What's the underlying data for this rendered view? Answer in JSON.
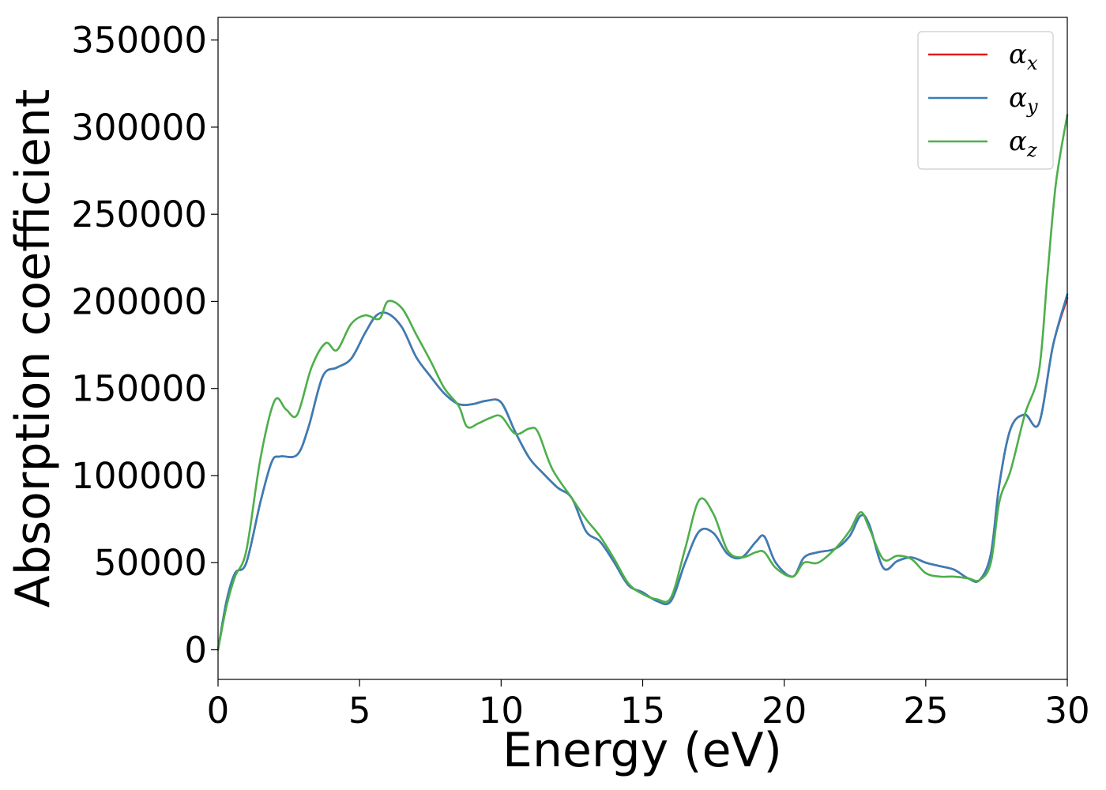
{
  "chart_data": {
    "type": "line",
    "title": "",
    "xlabel": "Energy (eV)",
    "ylabel": "Absorption coefficient",
    "xlim": [
      0,
      30
    ],
    "ylim": [
      -17000,
      363000
    ],
    "x_ticks": [
      "0",
      "5",
      "10",
      "15",
      "20",
      "25",
      "30"
    ],
    "x_tick_values": [
      0,
      5,
      10,
      15,
      20,
      25,
      30
    ],
    "y_ticks": [
      "0",
      "50000",
      "100000",
      "150000",
      "200000",
      "250000",
      "300000",
      "350000"
    ],
    "y_tick_values": [
      0,
      50000,
      100000,
      150000,
      200000,
      250000,
      300000,
      350000
    ],
    "grid": false,
    "legend_position": "top-right",
    "series": [
      {
        "name": "α_x",
        "base": "α",
        "sub": "x",
        "color": "#e41a1c",
        "points": [
          [
            0,
            0
          ],
          [
            0.3,
            28000
          ],
          [
            0.6,
            44000
          ],
          [
            1.0,
            50000
          ],
          [
            1.5,
            85000
          ],
          [
            1.9,
            108000
          ],
          [
            2.2,
            111000
          ],
          [
            2.8,
            112000
          ],
          [
            3.2,
            128000
          ],
          [
            3.7,
            157000
          ],
          [
            4.2,
            162000
          ],
          [
            4.7,
            167000
          ],
          [
            5.2,
            182000
          ],
          [
            5.6,
            192000
          ],
          [
            6.0,
            193000
          ],
          [
            6.5,
            185000
          ],
          [
            7.0,
            168000
          ],
          [
            7.5,
            157000
          ],
          [
            8.0,
            147000
          ],
          [
            8.5,
            141000
          ],
          [
            9.0,
            141000
          ],
          [
            9.5,
            143000
          ],
          [
            10.0,
            142000
          ],
          [
            10.5,
            125000
          ],
          [
            11.0,
            110000
          ],
          [
            11.5,
            101000
          ],
          [
            12.0,
            93000
          ],
          [
            12.5,
            87000
          ],
          [
            13.0,
            68000
          ],
          [
            13.5,
            62000
          ],
          [
            14.0,
            50000
          ],
          [
            14.5,
            37000
          ],
          [
            15.0,
            33000
          ],
          [
            15.5,
            28000
          ],
          [
            16.0,
            28000
          ],
          [
            16.5,
            50000
          ],
          [
            17.0,
            68000
          ],
          [
            17.5,
            67000
          ],
          [
            18.0,
            55000
          ],
          [
            18.5,
            53000
          ],
          [
            19.0,
            62000
          ],
          [
            19.3,
            65000
          ],
          [
            19.7,
            50000
          ],
          [
            20.3,
            42000
          ],
          [
            20.7,
            53000
          ],
          [
            21.2,
            56000
          ],
          [
            21.8,
            58000
          ],
          [
            22.3,
            65000
          ],
          [
            22.7,
            77000
          ],
          [
            23.0,
            72000
          ],
          [
            23.5,
            47000
          ],
          [
            24.0,
            51000
          ],
          [
            24.5,
            53000
          ],
          [
            25.0,
            50000
          ],
          [
            25.5,
            48000
          ],
          [
            26.0,
            46000
          ],
          [
            26.5,
            41000
          ],
          [
            26.9,
            40000
          ],
          [
            27.3,
            55000
          ],
          [
            27.6,
            95000
          ],
          [
            28.0,
            127000
          ],
          [
            28.5,
            135000
          ],
          [
            29.0,
            130000
          ],
          [
            29.5,
            175000
          ],
          [
            30.0,
            202000
          ]
        ]
      },
      {
        "name": "α_y",
        "base": "α",
        "sub": "y",
        "color": "#377eb8",
        "points": [
          [
            0,
            0
          ],
          [
            0.3,
            28000
          ],
          [
            0.6,
            44000
          ],
          [
            1.0,
            50000
          ],
          [
            1.5,
            85000
          ],
          [
            1.9,
            108000
          ],
          [
            2.2,
            111000
          ],
          [
            2.8,
            112000
          ],
          [
            3.2,
            128000
          ],
          [
            3.7,
            157000
          ],
          [
            4.2,
            162000
          ],
          [
            4.7,
            167000
          ],
          [
            5.2,
            182000
          ],
          [
            5.6,
            192000
          ],
          [
            6.0,
            193000
          ],
          [
            6.5,
            185000
          ],
          [
            7.0,
            168000
          ],
          [
            7.5,
            157000
          ],
          [
            8.0,
            147000
          ],
          [
            8.5,
            141000
          ],
          [
            9.0,
            141000
          ],
          [
            9.5,
            143000
          ],
          [
            10.0,
            142000
          ],
          [
            10.5,
            125000
          ],
          [
            11.0,
            110000
          ],
          [
            11.5,
            101000
          ],
          [
            12.0,
            93000
          ],
          [
            12.5,
            87000
          ],
          [
            13.0,
            68000
          ],
          [
            13.5,
            62000
          ],
          [
            14.0,
            50000
          ],
          [
            14.5,
            37000
          ],
          [
            15.0,
            33000
          ],
          [
            15.5,
            28000
          ],
          [
            16.0,
            28000
          ],
          [
            16.5,
            50000
          ],
          [
            17.0,
            68000
          ],
          [
            17.5,
            67000
          ],
          [
            18.0,
            55000
          ],
          [
            18.5,
            53000
          ],
          [
            19.0,
            62000
          ],
          [
            19.3,
            65000
          ],
          [
            19.7,
            50000
          ],
          [
            20.3,
            42000
          ],
          [
            20.7,
            53000
          ],
          [
            21.2,
            56000
          ],
          [
            21.8,
            58000
          ],
          [
            22.3,
            65000
          ],
          [
            22.7,
            77000
          ],
          [
            23.0,
            72000
          ],
          [
            23.5,
            47000
          ],
          [
            24.0,
            51000
          ],
          [
            24.5,
            53000
          ],
          [
            25.0,
            50000
          ],
          [
            25.5,
            48000
          ],
          [
            26.0,
            46000
          ],
          [
            26.5,
            41000
          ],
          [
            26.9,
            40000
          ],
          [
            27.3,
            55000
          ],
          [
            27.6,
            95000
          ],
          [
            28.0,
            127000
          ],
          [
            28.5,
            135000
          ],
          [
            29.0,
            130000
          ],
          [
            29.5,
            175000
          ],
          [
            30.0,
            204000
          ]
        ]
      },
      {
        "name": "α_z",
        "base": "α",
        "sub": "z",
        "color": "#4daf4a",
        "points": [
          [
            0,
            0
          ],
          [
            0.3,
            25000
          ],
          [
            0.6,
            42000
          ],
          [
            1.0,
            57000
          ],
          [
            1.5,
            110000
          ],
          [
            2.0,
            143000
          ],
          [
            2.4,
            138000
          ],
          [
            2.8,
            135000
          ],
          [
            3.3,
            162000
          ],
          [
            3.8,
            176000
          ],
          [
            4.2,
            172000
          ],
          [
            4.7,
            187000
          ],
          [
            5.2,
            192000
          ],
          [
            5.7,
            190000
          ],
          [
            6.0,
            200000
          ],
          [
            6.5,
            196000
          ],
          [
            7.0,
            181000
          ],
          [
            7.5,
            166000
          ],
          [
            8.0,
            150000
          ],
          [
            8.5,
            140000
          ],
          [
            8.8,
            128000
          ],
          [
            9.2,
            130000
          ],
          [
            9.6,
            133000
          ],
          [
            10.0,
            134000
          ],
          [
            10.5,
            124000
          ],
          [
            11.0,
            127000
          ],
          [
            11.3,
            125000
          ],
          [
            11.8,
            104000
          ],
          [
            12.5,
            87000
          ],
          [
            13.0,
            75000
          ],
          [
            13.5,
            65000
          ],
          [
            14.0,
            52000
          ],
          [
            14.5,
            38000
          ],
          [
            15.0,
            32000
          ],
          [
            15.5,
            29000
          ],
          [
            16.0,
            30000
          ],
          [
            16.5,
            58000
          ],
          [
            17.0,
            86000
          ],
          [
            17.5,
            78000
          ],
          [
            18.0,
            57000
          ],
          [
            18.5,
            53000
          ],
          [
            19.0,
            56000
          ],
          [
            19.3,
            56000
          ],
          [
            19.7,
            47000
          ],
          [
            20.3,
            42000
          ],
          [
            20.7,
            50000
          ],
          [
            21.2,
            50000
          ],
          [
            21.8,
            58000
          ],
          [
            22.3,
            68000
          ],
          [
            22.7,
            79000
          ],
          [
            23.0,
            70000
          ],
          [
            23.5,
            52000
          ],
          [
            24.0,
            54000
          ],
          [
            24.5,
            52000
          ],
          [
            25.0,
            44000
          ],
          [
            25.5,
            42000
          ],
          [
            26.0,
            42000
          ],
          [
            26.5,
            41000
          ],
          [
            26.9,
            40000
          ],
          [
            27.3,
            50000
          ],
          [
            27.6,
            85000
          ],
          [
            28.0,
            103000
          ],
          [
            28.5,
            135000
          ],
          [
            29.0,
            160000
          ],
          [
            29.3,
            215000
          ],
          [
            29.6,
            268000
          ],
          [
            30.0,
            307000
          ]
        ]
      }
    ]
  }
}
